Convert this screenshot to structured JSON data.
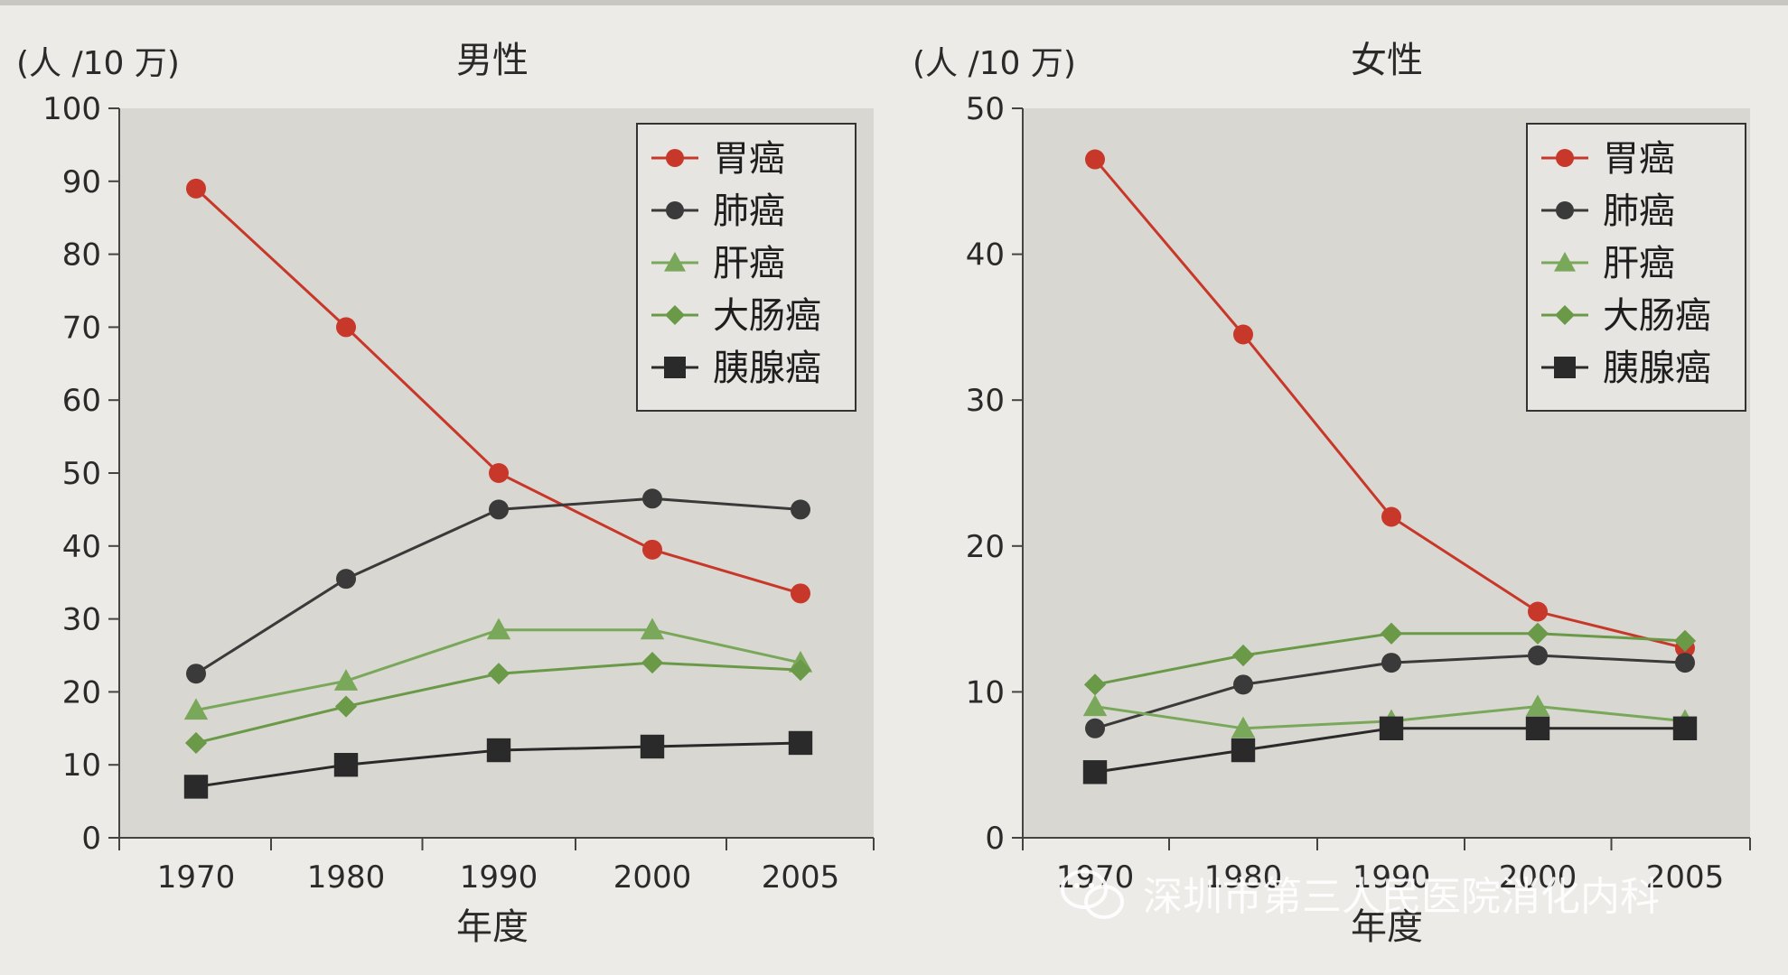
{
  "colors": {
    "plot_bg": "#d9d7d1",
    "page_bg": "#ecebe7",
    "axis": "#444444",
    "stomach": "#c8382a",
    "lung": "#3a3a3a",
    "liver": "#7aa85a",
    "colorectal": "#6a9a48",
    "pancreas": "#2a2a2a"
  },
  "chart_data": [
    {
      "type": "line",
      "title": "男性",
      "unit_label": "(人 /10 万)",
      "xlabel": "年度",
      "categories": [
        "1970",
        "1980",
        "1990",
        "2000",
        "2005"
      ],
      "yticks": [
        "0",
        "10",
        "20",
        "30",
        "40",
        "50",
        "60",
        "70",
        "80",
        "90",
        "100"
      ],
      "ylim": [
        0,
        100
      ],
      "legend_position": "top-right",
      "series": [
        {
          "name": "胃癌",
          "marker": "circle",
          "color_key": "stomach",
          "values": [
            89,
            70,
            50,
            39.5,
            33.5
          ]
        },
        {
          "name": "肺癌",
          "marker": "circle",
          "color_key": "lung",
          "values": [
            22.5,
            35.5,
            45,
            46.5,
            45
          ]
        },
        {
          "name": "肝癌",
          "marker": "triangle",
          "color_key": "liver",
          "values": [
            17.5,
            21.5,
            28.5,
            28.5,
            24
          ]
        },
        {
          "name": "大肠癌",
          "marker": "diamond",
          "color_key": "colorectal",
          "values": [
            13,
            18,
            22.5,
            24,
            23
          ]
        },
        {
          "name": "胰腺癌",
          "marker": "square",
          "color_key": "pancreas",
          "values": [
            7,
            10,
            12,
            12.5,
            13
          ]
        }
      ]
    },
    {
      "type": "line",
      "title": "女性",
      "unit_label": "(人 /10 万)",
      "xlabel": "年度",
      "categories": [
        "1970",
        "1980",
        "1990",
        "2000",
        "2005"
      ],
      "yticks": [
        "0",
        "10",
        "20",
        "30",
        "40",
        "50"
      ],
      "ylim": [
        0,
        50
      ],
      "legend_position": "top-right",
      "series": [
        {
          "name": "胃癌",
          "marker": "circle",
          "color_key": "stomach",
          "values": [
            46.5,
            34.5,
            22,
            15.5,
            13
          ]
        },
        {
          "name": "肺癌",
          "marker": "circle",
          "color_key": "lung",
          "values": [
            7.5,
            10.5,
            12,
            12.5,
            12
          ]
        },
        {
          "name": "肝癌",
          "marker": "triangle",
          "color_key": "liver",
          "values": [
            9,
            7.5,
            8,
            9,
            8
          ]
        },
        {
          "name": "大肠癌",
          "marker": "diamond",
          "color_key": "colorectal",
          "values": [
            10.5,
            12.5,
            14,
            14,
            13.5
          ]
        },
        {
          "name": "胰腺癌",
          "marker": "square",
          "color_key": "pancreas",
          "values": [
            4.5,
            6,
            7.5,
            7.5,
            7.5
          ]
        }
      ]
    }
  ],
  "watermark": {
    "text": "深圳市第三人民医院消化内科",
    "icon": "wechat-icon"
  }
}
